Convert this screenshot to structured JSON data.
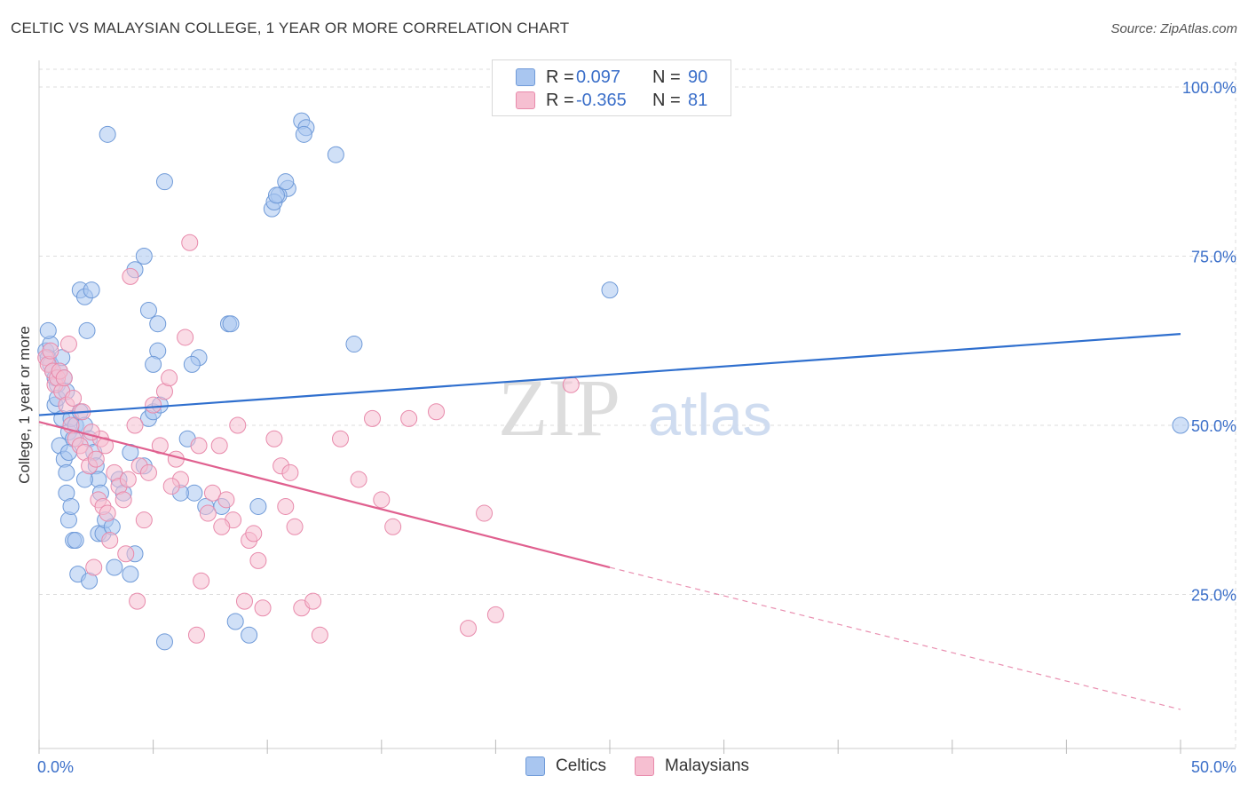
{
  "header": {
    "title": "CELTIC VS MALAYSIAN COLLEGE, 1 YEAR OR MORE CORRELATION CHART",
    "source": "Source: ZipAtlas.com"
  },
  "stats_legend": {
    "rows": [
      {
        "r_label": "R =",
        "r_value": "0.097",
        "n_label": "N =",
        "n_value": "90",
        "color": "#a9c6f0",
        "border": "#6f9ad8"
      },
      {
        "r_label": "R =",
        "r_value": "-0.365",
        "n_label": "N =",
        "n_value": "81",
        "color": "#f6bfd1",
        "border": "#e88aab"
      }
    ]
  },
  "watermark": {
    "zip": "ZIP",
    "atlas": "atlas"
  },
  "chart_data": {
    "type": "scatter",
    "xlabel": "",
    "ylabel": "College, 1 year or more",
    "xlim": [
      0,
      50
    ],
    "ylim": [
      0,
      105
    ],
    "x_ticks": [
      "0.0%",
      "50.0%"
    ],
    "y_ticks": [
      {
        "value": 25,
        "label": "25.0%"
      },
      {
        "value": 50,
        "label": "50.0%"
      },
      {
        "value": 75,
        "label": "75.0%"
      },
      {
        "value": 100,
        "label": "100.0%"
      }
    ],
    "grid": true,
    "legend_position": "bottom",
    "series": [
      {
        "name": "Celtics",
        "color": "#a9c6f0",
        "stroke": "#6f9ad8",
        "trend": {
          "x": [
            0,
            50
          ],
          "y": [
            51.5,
            63.5
          ],
          "color": "#2f6fce"
        },
        "points": [
          [
            0.3,
            61
          ],
          [
            0.4,
            60
          ],
          [
            0.5,
            59
          ],
          [
            0.6,
            58
          ],
          [
            0.7,
            57
          ],
          [
            0.8,
            56
          ],
          [
            0.5,
            62
          ],
          [
            0.4,
            64
          ],
          [
            0.9,
            58
          ],
          [
            1.0,
            60
          ],
          [
            1.1,
            57
          ],
          [
            0.7,
            53
          ],
          [
            0.8,
            54
          ],
          [
            1.2,
            55
          ],
          [
            1.0,
            51
          ],
          [
            1.3,
            49
          ],
          [
            1.5,
            48
          ],
          [
            1.4,
            51
          ],
          [
            1.6,
            50
          ],
          [
            1.8,
            52
          ],
          [
            0.9,
            47
          ],
          [
            1.1,
            45
          ],
          [
            1.3,
            46
          ],
          [
            1.2,
            43
          ],
          [
            2.0,
            50
          ],
          [
            2.2,
            48
          ],
          [
            2.4,
            46
          ],
          [
            2.5,
            44
          ],
          [
            2.6,
            42
          ],
          [
            2.7,
            40
          ],
          [
            1.2,
            40
          ],
          [
            1.3,
            36
          ],
          [
            1.5,
            33
          ],
          [
            1.7,
            28
          ],
          [
            2.2,
            27
          ],
          [
            2.6,
            34
          ],
          [
            2.8,
            34
          ],
          [
            2.9,
            36
          ],
          [
            3.2,
            35
          ],
          [
            3.5,
            42
          ],
          [
            3.7,
            40
          ],
          [
            4.0,
            46
          ],
          [
            4.2,
            31
          ],
          [
            4.6,
            44
          ],
          [
            4.8,
            51
          ],
          [
            5.0,
            52
          ],
          [
            5.3,
            53
          ],
          [
            5.2,
            61
          ],
          [
            5.0,
            59
          ],
          [
            5.5,
            18
          ],
          [
            6.5,
            48
          ],
          [
            6.8,
            40
          ],
          [
            7.0,
            60
          ],
          [
            8.0,
            38
          ],
          [
            8.3,
            65
          ],
          [
            8.6,
            21
          ],
          [
            9.2,
            19
          ],
          [
            9.6,
            38
          ],
          [
            10.2,
            82
          ],
          [
            10.9,
            85
          ],
          [
            3.0,
            93
          ],
          [
            5.5,
            86
          ],
          [
            10.5,
            84
          ],
          [
            10.3,
            83
          ],
          [
            10.4,
            84
          ],
          [
            10.8,
            86
          ],
          [
            11.5,
            95
          ],
          [
            11.7,
            94
          ],
          [
            11.6,
            93
          ],
          [
            13.0,
            90
          ],
          [
            1.8,
            70
          ],
          [
            2.0,
            69
          ],
          [
            2.3,
            70
          ],
          [
            2.1,
            64
          ],
          [
            4.2,
            73
          ],
          [
            4.6,
            75
          ],
          [
            4.8,
            67
          ],
          [
            5.2,
            65
          ],
          [
            6.7,
            59
          ],
          [
            8.4,
            65
          ],
          [
            13.8,
            62
          ],
          [
            25.0,
            70
          ],
          [
            50.0,
            50
          ],
          [
            1.6,
            33
          ],
          [
            3.3,
            29
          ],
          [
            4.0,
            28
          ],
          [
            6.2,
            40
          ],
          [
            7.3,
            38
          ],
          [
            2.0,
            42
          ],
          [
            1.4,
            38
          ]
        ]
      },
      {
        "name": "Malaysians",
        "color": "#f6bfd1",
        "stroke": "#e88aab",
        "trend": {
          "x": [
            0,
            25
          ],
          "y": [
            50.5,
            29
          ],
          "color": "#e0608f",
          "dash_to": {
            "x": 50,
            "y": 8
          }
        },
        "points": [
          [
            0.3,
            60
          ],
          [
            0.4,
            59
          ],
          [
            0.6,
            58
          ],
          [
            0.5,
            61
          ],
          [
            0.7,
            56
          ],
          [
            0.8,
            57
          ],
          [
            1.0,
            55
          ],
          [
            1.2,
            53
          ],
          [
            1.5,
            54
          ],
          [
            1.3,
            62
          ],
          [
            0.9,
            58
          ],
          [
            1.1,
            57
          ],
          [
            1.4,
            50
          ],
          [
            1.6,
            48
          ],
          [
            1.8,
            47
          ],
          [
            2.0,
            46
          ],
          [
            2.2,
            44
          ],
          [
            2.5,
            45
          ],
          [
            2.7,
            48
          ],
          [
            2.9,
            47
          ],
          [
            1.9,
            52
          ],
          [
            2.3,
            49
          ],
          [
            2.6,
            39
          ],
          [
            2.8,
            38
          ],
          [
            3.0,
            37
          ],
          [
            3.3,
            43
          ],
          [
            3.5,
            41
          ],
          [
            3.7,
            39
          ],
          [
            3.9,
            42
          ],
          [
            4.2,
            50
          ],
          [
            4.4,
            44
          ],
          [
            4.6,
            36
          ],
          [
            4.8,
            43
          ],
          [
            5.0,
            53
          ],
          [
            5.3,
            47
          ],
          [
            5.5,
            55
          ],
          [
            5.7,
            57
          ],
          [
            6.0,
            45
          ],
          [
            6.2,
            42
          ],
          [
            6.4,
            63
          ],
          [
            6.6,
            77
          ],
          [
            7.0,
            47
          ],
          [
            7.4,
            37
          ],
          [
            7.6,
            40
          ],
          [
            7.9,
            47
          ],
          [
            8.2,
            39
          ],
          [
            8.5,
            36
          ],
          [
            8.7,
            50
          ],
          [
            9.0,
            24
          ],
          [
            9.2,
            33
          ],
          [
            9.4,
            34
          ],
          [
            9.6,
            30
          ],
          [
            10.3,
            48
          ],
          [
            10.6,
            44
          ],
          [
            10.8,
            38
          ],
          [
            11.0,
            43
          ],
          [
            11.2,
            35
          ],
          [
            11.5,
            23
          ],
          [
            12.0,
            24
          ],
          [
            12.3,
            19
          ],
          [
            13.2,
            48
          ],
          [
            14.0,
            42
          ],
          [
            14.6,
            51
          ],
          [
            15.0,
            39
          ],
          [
            15.5,
            35
          ],
          [
            16.2,
            51
          ],
          [
            17.4,
            52
          ],
          [
            18.8,
            20
          ],
          [
            19.5,
            37
          ],
          [
            20.0,
            22
          ],
          [
            23.3,
            56
          ],
          [
            4.0,
            72
          ],
          [
            3.8,
            31
          ],
          [
            3.1,
            33
          ],
          [
            2.4,
            29
          ],
          [
            5.8,
            41
          ],
          [
            7.1,
            27
          ],
          [
            8.0,
            35
          ],
          [
            6.9,
            19
          ],
          [
            9.8,
            23
          ],
          [
            4.3,
            24
          ]
        ]
      }
    ]
  }
}
